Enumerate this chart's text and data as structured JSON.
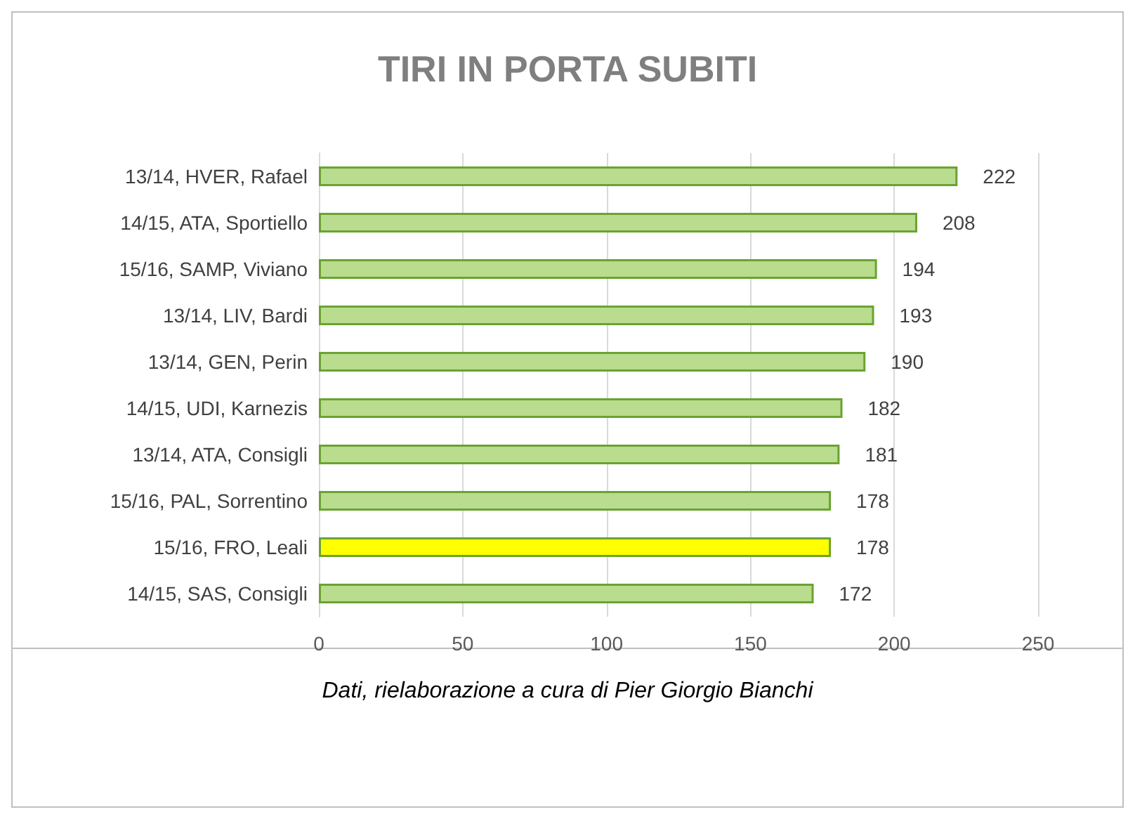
{
  "chart_data": {
    "type": "bar",
    "orientation": "horizontal",
    "title": "TIRI IN PORTA SUBITI",
    "categories": [
      "13/14, HVER, Rafael",
      "14/15, ATA, Sportiello",
      "15/16, SAMP, Viviano",
      "13/14, LIV, Bardi",
      "13/14, GEN, Perin",
      "14/15, UDI, Karnezis",
      "13/14, ATA, Consigli",
      "15/16, PAL, Sorrentino",
      "15/16, FRO, Leali",
      "14/15, SAS, Consigli"
    ],
    "values": [
      222,
      208,
      194,
      193,
      190,
      182,
      181,
      178,
      178,
      172
    ],
    "colors": [
      "#b9dc8e",
      "#b9dc8e",
      "#b9dc8e",
      "#b9dc8e",
      "#b9dc8e",
      "#b9dc8e",
      "#b9dc8e",
      "#b9dc8e",
      "#ffff00",
      "#b9dc8e"
    ],
    "xlim": [
      0,
      250
    ],
    "xticks": [
      0,
      50,
      100,
      150,
      200,
      250
    ],
    "grid": "x",
    "data_labels": true,
    "annotations": [
      "Dati, rielaborazione a cura di Pier Giorgio Bianchi"
    ]
  }
}
